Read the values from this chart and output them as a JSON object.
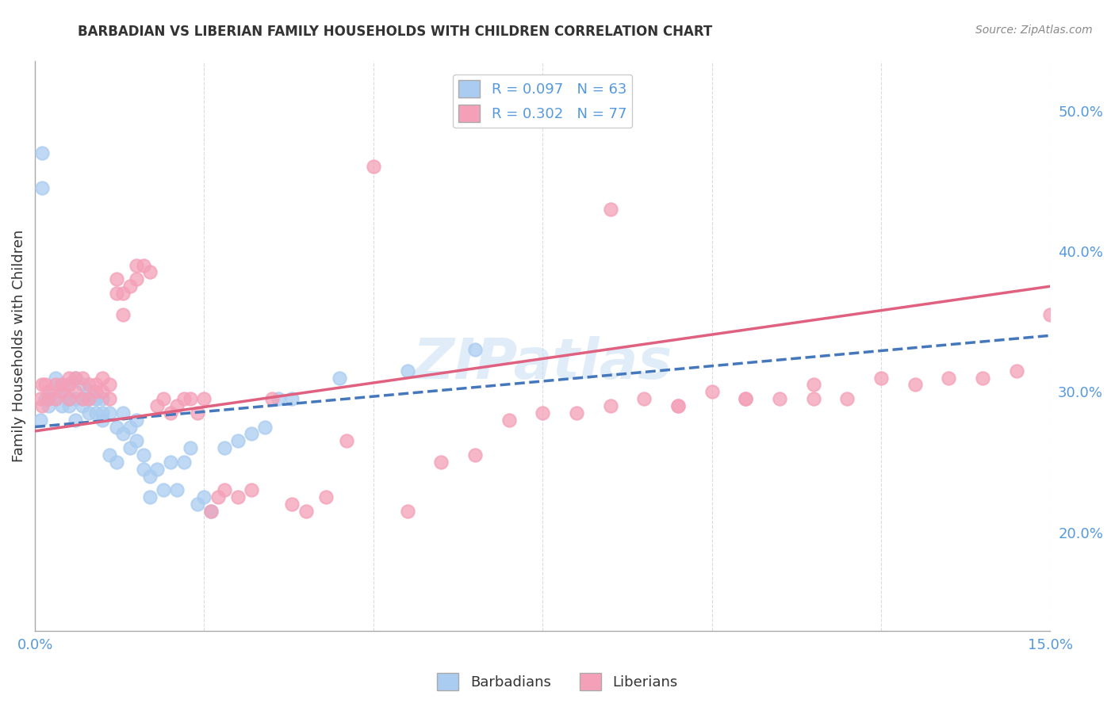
{
  "title": "BARBADIAN VS LIBERIAN FAMILY HOUSEHOLDS WITH CHILDREN CORRELATION CHART",
  "source": "Source: ZipAtlas.com",
  "ylabel": "Family Households with Children",
  "xlim": [
    0.0,
    0.15
  ],
  "ylim": [
    0.13,
    0.535
  ],
  "xticks": [
    0.0,
    0.025,
    0.05,
    0.075,
    0.1,
    0.125,
    0.15
  ],
  "yticks_right": [
    0.2,
    0.3,
    0.4,
    0.5
  ],
  "ytick_right_labels": [
    "20.0%",
    "30.0%",
    "40.0%",
    "50.0%"
  ],
  "barbadian_color": "#aaccf0",
  "liberian_color": "#f4a0b8",
  "barbadian_line_color": "#4477bb",
  "liberian_line_color": "#e06080",
  "R_barbadian": 0.097,
  "N_barbadian": 63,
  "R_liberian": 0.302,
  "N_liberian": 77,
  "background_color": "#ffffff",
  "grid_color": "#cccccc",
  "watermark": "ZIPatlas",
  "barbadian_x": [
    0.0008,
    0.001,
    0.001,
    0.0015,
    0.002,
    0.002,
    0.003,
    0.003,
    0.003,
    0.004,
    0.004,
    0.004,
    0.005,
    0.005,
    0.005,
    0.005,
    0.006,
    0.006,
    0.006,
    0.007,
    0.007,
    0.007,
    0.008,
    0.008,
    0.008,
    0.009,
    0.009,
    0.009,
    0.01,
    0.01,
    0.01,
    0.011,
    0.011,
    0.012,
    0.012,
    0.013,
    0.013,
    0.014,
    0.014,
    0.015,
    0.015,
    0.016,
    0.016,
    0.017,
    0.017,
    0.018,
    0.019,
    0.02,
    0.021,
    0.022,
    0.023,
    0.024,
    0.025,
    0.026,
    0.028,
    0.03,
    0.032,
    0.034,
    0.036,
    0.038,
    0.045,
    0.055,
    0.065
  ],
  "barbadian_y": [
    0.28,
    0.445,
    0.47,
    0.295,
    0.295,
    0.29,
    0.3,
    0.31,
    0.295,
    0.305,
    0.29,
    0.3,
    0.295,
    0.305,
    0.295,
    0.29,
    0.31,
    0.295,
    0.28,
    0.295,
    0.29,
    0.305,
    0.295,
    0.3,
    0.285,
    0.295,
    0.285,
    0.295,
    0.285,
    0.295,
    0.28,
    0.285,
    0.255,
    0.275,
    0.25,
    0.27,
    0.285,
    0.26,
    0.275,
    0.265,
    0.28,
    0.245,
    0.255,
    0.225,
    0.24,
    0.245,
    0.23,
    0.25,
    0.23,
    0.25,
    0.26,
    0.22,
    0.225,
    0.215,
    0.26,
    0.265,
    0.27,
    0.275,
    0.295,
    0.295,
    0.31,
    0.315,
    0.33
  ],
  "liberian_x": [
    0.0008,
    0.001,
    0.001,
    0.0015,
    0.002,
    0.002,
    0.003,
    0.003,
    0.004,
    0.004,
    0.005,
    0.005,
    0.005,
    0.006,
    0.006,
    0.007,
    0.007,
    0.008,
    0.008,
    0.009,
    0.009,
    0.01,
    0.01,
    0.011,
    0.011,
    0.012,
    0.012,
    0.013,
    0.013,
    0.014,
    0.015,
    0.015,
    0.016,
    0.017,
    0.018,
    0.019,
    0.02,
    0.021,
    0.022,
    0.023,
    0.024,
    0.025,
    0.026,
    0.027,
    0.028,
    0.03,
    0.032,
    0.035,
    0.038,
    0.04,
    0.043,
    0.046,
    0.05,
    0.055,
    0.06,
    0.065,
    0.07,
    0.075,
    0.08,
    0.085,
    0.09,
    0.095,
    0.1,
    0.105,
    0.11,
    0.115,
    0.12,
    0.125,
    0.13,
    0.135,
    0.14,
    0.145,
    0.15,
    0.085,
    0.095,
    0.105,
    0.115
  ],
  "liberian_y": [
    0.295,
    0.305,
    0.29,
    0.305,
    0.3,
    0.295,
    0.305,
    0.295,
    0.305,
    0.3,
    0.31,
    0.295,
    0.305,
    0.3,
    0.31,
    0.295,
    0.31,
    0.305,
    0.295,
    0.305,
    0.3,
    0.3,
    0.31,
    0.295,
    0.305,
    0.37,
    0.38,
    0.37,
    0.355,
    0.375,
    0.39,
    0.38,
    0.39,
    0.385,
    0.29,
    0.295,
    0.285,
    0.29,
    0.295,
    0.295,
    0.285,
    0.295,
    0.215,
    0.225,
    0.23,
    0.225,
    0.23,
    0.295,
    0.22,
    0.215,
    0.225,
    0.265,
    0.46,
    0.215,
    0.25,
    0.255,
    0.28,
    0.285,
    0.285,
    0.29,
    0.295,
    0.29,
    0.3,
    0.295,
    0.295,
    0.305,
    0.295,
    0.31,
    0.305,
    0.31,
    0.31,
    0.315,
    0.355,
    0.43,
    0.29,
    0.295,
    0.295
  ]
}
